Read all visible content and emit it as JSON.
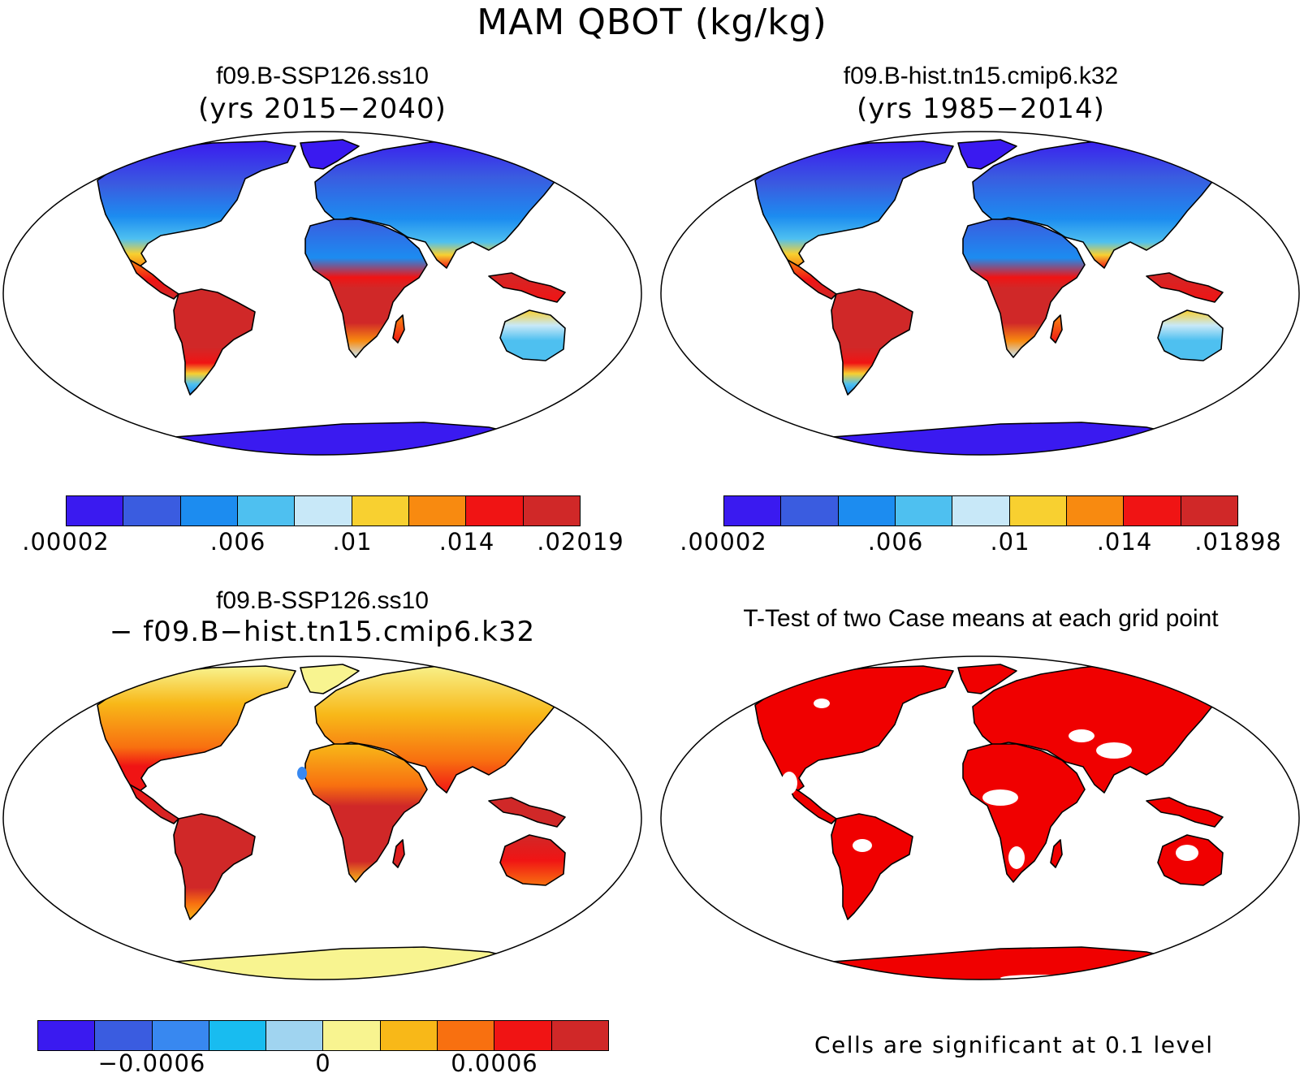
{
  "figure_title": "MAM QBOT (kg/kg)",
  "panels": {
    "top_left": {
      "title": "f09.B-SSP126.ss10",
      "subtitle": "(yrs 2015−2040)",
      "colorbar": {
        "colors": [
          "#3a1af0",
          "#3a5ce0",
          "#1c8cf0",
          "#4ec0f0",
          "#c8e8f8",
          "#f8d030",
          "#f88a10",
          "#f01414",
          "#d02828"
        ],
        "labels": [
          ".00002",
          ".006",
          ".01",
          ".014",
          ".02019"
        ]
      }
    },
    "top_right": {
      "title": "f09.B-hist.tn15.cmip6.k32",
      "subtitle": "(yrs 1985−2014)",
      "colorbar": {
        "colors": [
          "#3a1af0",
          "#3a5ce0",
          "#1c8cf0",
          "#4ec0f0",
          "#c8e8f8",
          "#f8d030",
          "#f88a10",
          "#f01414",
          "#d02828"
        ],
        "labels": [
          ".00002",
          ".006",
          ".01",
          ".014",
          ".01898"
        ]
      }
    },
    "bottom_left": {
      "title": "f09.B-SSP126.ss10",
      "subtitle": "− f09.B−hist.tn15.cmip6.k32",
      "colorbar": {
        "colors": [
          "#3a1af0",
          "#3a5ce0",
          "#3888f0",
          "#18bcf0",
          "#a0d4f0",
          "#f8f490",
          "#f8b818",
          "#f87010",
          "#f01414",
          "#d02828"
        ],
        "labels": [
          "−0.0006",
          "0",
          "0.0006"
        ]
      }
    },
    "bottom_right": {
      "title": "T-Test of two Case means at each grid point",
      "note": "Cells are significant at 0.1 level",
      "significant_color": "#f00000"
    }
  }
}
